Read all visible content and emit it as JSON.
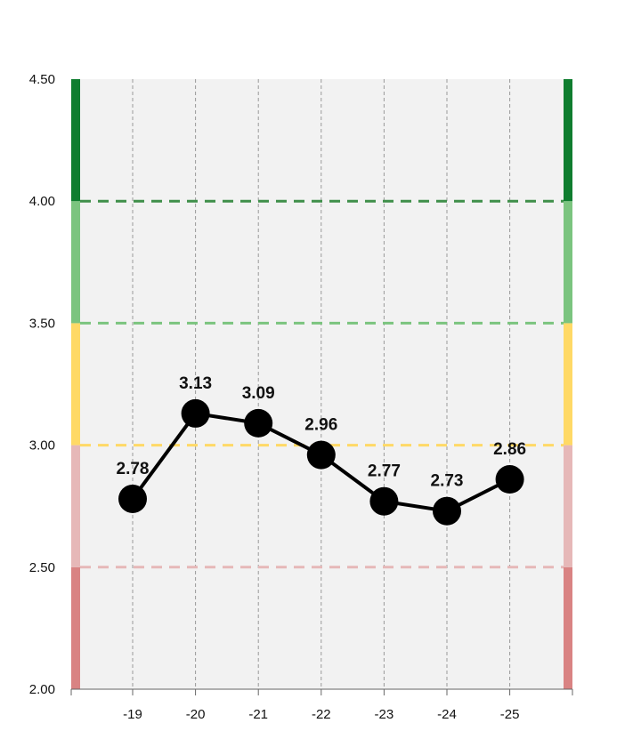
{
  "chart_data": {
    "type": "line",
    "title": "",
    "xlabel": "",
    "ylabel": "",
    "categories": [
      "-19",
      "-20",
      "-21",
      "-22",
      "-23",
      "-24",
      "-25"
    ],
    "series": [
      {
        "values": [
          2.78,
          3.13,
          3.09,
          2.96,
          2.77,
          2.73,
          2.86
        ],
        "labels": [
          "2.78",
          "3.13",
          "3.09",
          "2.96",
          "2.77",
          "2.73",
          "2.86"
        ]
      }
    ],
    "ylim": [
      2.0,
      4.5
    ],
    "yticks": [
      2.0,
      2.5,
      3.0,
      3.5,
      4.0,
      4.5
    ],
    "ytick_labels": [
      "2.00",
      "2.50",
      "3.00",
      "3.50",
      "4.00",
      "4.50"
    ],
    "grid": {
      "vertical": true,
      "horizontal": false
    },
    "legend": "none",
    "bands": [
      {
        "from": 2.0,
        "to": 2.5,
        "color": "#d98383"
      },
      {
        "from": 2.5,
        "to": 3.0,
        "color": "#e6b8b8"
      },
      {
        "from": 3.0,
        "to": 3.5,
        "color": "#ffd966"
      },
      {
        "from": 3.5,
        "to": 4.0,
        "color": "#7bc47f"
      },
      {
        "from": 4.0,
        "to": 4.5,
        "color": "#0f7d2f"
      }
    ],
    "thresholds": [
      {
        "value": 2.5,
        "color": "#e6b8b8"
      },
      {
        "value": 3.0,
        "color": "#ffd966"
      },
      {
        "value": 3.5,
        "color": "#7bc47f"
      },
      {
        "value": 4.0,
        "color": "#3f8f4a"
      }
    ],
    "colors": {
      "plot_background": "#f2f2f2",
      "line": "#000000",
      "marker": "#000000",
      "grid": "#9a9a9a",
      "axis": "#666666"
    }
  }
}
